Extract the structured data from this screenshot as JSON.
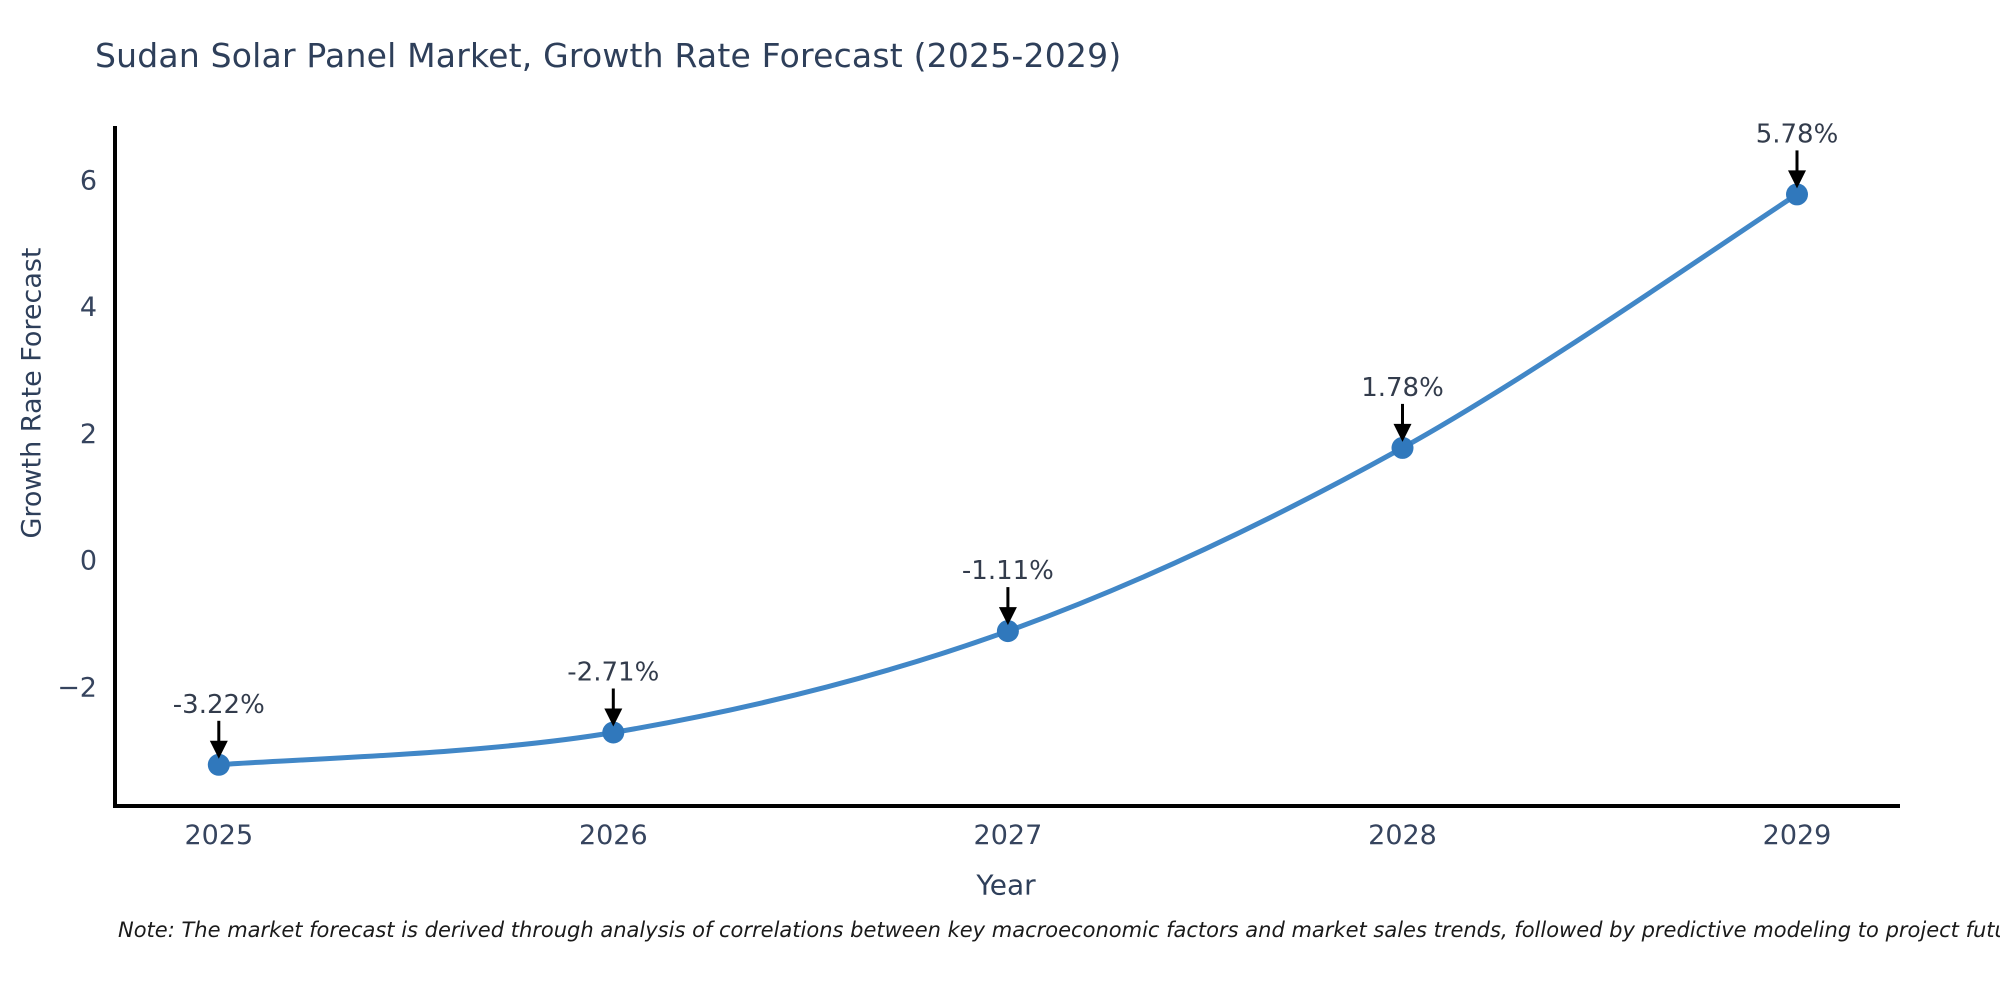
{
  "title": "Sudan Solar Panel Market, Growth Rate Forecast (2025-2029)",
  "note": "Note: The market forecast is derived through analysis of correlations between key macroeconomic factors and market sales trends, followed by predictive modeling to project future sales",
  "chart_data": {
    "type": "line",
    "title": "Sudan Solar Panel Market, Growth Rate Forecast (2025-2029)",
    "xlabel": "Year",
    "ylabel": "Growth Rate Forecast",
    "categories": [
      2025,
      2026,
      2027,
      2028,
      2029
    ],
    "series": [
      {
        "name": "Growth Rate Forecast",
        "values": [
          -3.22,
          -2.71,
          -1.11,
          1.78,
          5.78
        ]
      }
    ],
    "point_labels": [
      "-3.22%",
      "-2.71%",
      "-1.11%",
      "1.78%",
      "5.78%"
    ],
    "yticks": [
      -2,
      0,
      2,
      4,
      6
    ],
    "yticklabels": [
      "−2",
      "0",
      "2",
      "4",
      "6"
    ],
    "xlim": [
      2024.737,
      2029.261
    ],
    "ylim": [
      -3.87,
      6.86
    ],
    "grid": false,
    "legend": "none",
    "line_style": "smooth",
    "colors": {
      "line": "#4187c7",
      "marker": "#3078bc",
      "spine": "#000000",
      "title_text": "#2e3f5a",
      "tick_text": "#36445e",
      "annotation_text": "#333c4c",
      "arrow": "#000000",
      "note_text": "#1a1a1a",
      "background": "#ffffff"
    }
  }
}
